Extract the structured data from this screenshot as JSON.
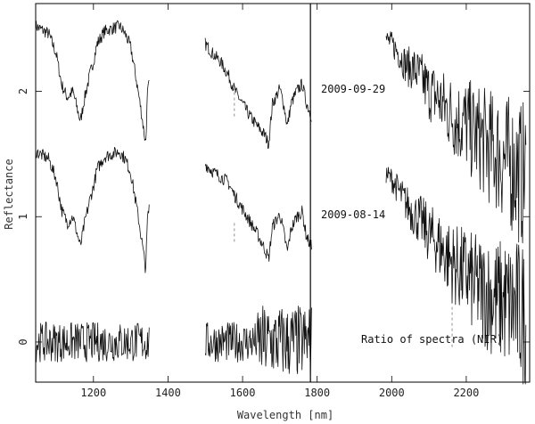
{
  "chart_data": {
    "type": "line",
    "xlabel": "Wavelength [nm]",
    "ylabel": "Reflectance",
    "xlim": [
      1045,
      2370
    ],
    "ylim": [
      -0.32,
      2.7
    ],
    "x_ticks": [
      1200,
      1400,
      1600,
      1800,
      2000,
      2200
    ],
    "y_ticks": [
      0,
      1,
      2
    ],
    "annotations": [
      "2009-09-29",
      "2009-08-14",
      "Ratio of spectra (NIR)"
    ],
    "vertical_line_x": 1782,
    "series": [
      {
        "name": "2009-09-29",
        "segments": [
          {
            "x": [
              1045,
              1080,
              1100,
              1115,
              1130,
              1145,
              1155,
              1165,
              1175,
              1190,
              1200,
              1210,
              1230,
              1250,
              1270,
              1285,
              1300,
              1310,
              1320,
              1330,
              1340,
              1345,
              1350
            ],
            "y": [
              2.52,
              2.46,
              2.3,
              2.05,
              1.95,
              2.0,
              1.88,
              1.76,
              1.93,
              2.13,
              2.24,
              2.38,
              2.48,
              2.5,
              2.52,
              2.46,
              2.35,
              2.18,
              2.0,
              1.8,
              1.58,
              1.98,
              2.08
            ]
          },
          {
            "x": [
              1500,
              1520,
              1540,
              1560,
              1580,
              1600,
              1620,
              1640,
              1660,
              1670,
              1680,
              1700,
              1710,
              1720,
              1730,
              1745,
              1760,
              1770,
              1780,
              1785
            ],
            "y": [
              2.38,
              2.3,
              2.24,
              2.14,
              2.0,
              1.9,
              1.8,
              1.72,
              1.65,
              1.58,
              1.9,
              2.02,
              1.9,
              1.72,
              1.9,
              2.0,
              2.06,
              1.92,
              1.84,
              1.8
            ]
          },
          {
            "x": [
              1985,
              2000,
              2020,
              2040,
              2060,
              2080,
              2100,
              2120,
              2140,
              2160,
              2180,
              2200,
              2220,
              2240,
              2260,
              2280,
              2300,
              2320,
              2340,
              2360
            ],
            "y": [
              2.42,
              2.38,
              2.3,
              2.2,
              2.18,
              2.1,
              2.0,
              1.96,
              1.88,
              1.82,
              1.76,
              1.74,
              1.66,
              1.62,
              1.56,
              1.52,
              1.46,
              1.42,
              1.36,
              1.32
            ]
          }
        ]
      },
      {
        "name": "2009-08-14",
        "segments": [
          {
            "x": [
              1045,
              1080,
              1100,
              1115,
              1130,
              1145,
              1155,
              1165,
              1175,
              1190,
              1200,
              1210,
              1230,
              1250,
              1270,
              1285,
              1300,
              1310,
              1320,
              1330,
              1340,
              1345,
              1350
            ],
            "y": [
              1.52,
              1.46,
              1.3,
              1.05,
              0.95,
              1.0,
              0.88,
              0.76,
              0.93,
              1.13,
              1.24,
              1.38,
              1.48,
              1.5,
              1.52,
              1.46,
              1.35,
              1.18,
              1.0,
              0.8,
              0.58,
              0.98,
              1.08
            ]
          },
          {
            "x": [
              1500,
              1520,
              1540,
              1560,
              1580,
              1600,
              1620,
              1640,
              1660,
              1670,
              1680,
              1700,
              1710,
              1720,
              1730,
              1745,
              1760,
              1770,
              1780,
              1785
            ],
            "y": [
              1.42,
              1.36,
              1.32,
              1.28,
              1.16,
              1.06,
              0.96,
              0.86,
              0.74,
              0.66,
              0.92,
              1.02,
              0.88,
              0.72,
              0.9,
              1.0,
              1.04,
              0.86,
              0.78,
              0.76
            ]
          },
          {
            "x": [
              1985,
              2000,
              2020,
              2040,
              2060,
              2080,
              2100,
              2120,
              2140,
              2160,
              2180,
              2200,
              2220,
              2240,
              2260,
              2280,
              2300,
              2320,
              2340,
              2360
            ],
            "y": [
              1.34,
              1.3,
              1.2,
              1.1,
              1.02,
              0.96,
              0.86,
              0.8,
              0.72,
              0.64,
              0.58,
              0.54,
              0.46,
              0.42,
              0.38,
              0.34,
              0.32,
              0.28,
              0.25,
              0.22
            ]
          }
        ]
      },
      {
        "name": "Ratio of spectra (NIR)",
        "segments": [
          {
            "x": [
              1045,
              1100,
              1150,
              1200,
              1250,
              1300,
              1350
            ],
            "y": [
              0,
              0,
              0,
              0,
              0,
              0,
              0
            ]
          },
          {
            "x": [
              1500,
              1550,
              1600,
              1650,
              1700,
              1750,
              1785
            ],
            "y": [
              0,
              0,
              0,
              0,
              0,
              0,
              0
            ]
          }
        ]
      }
    ],
    "dashed_markers": [
      {
        "x": 1578,
        "y": [
          1.8,
          2.02
        ]
      },
      {
        "x": 1578,
        "y": [
          0.8,
          0.96
        ]
      },
      {
        "x": 2162,
        "y": [
          -0.04,
          0.28
        ]
      }
    ]
  }
}
